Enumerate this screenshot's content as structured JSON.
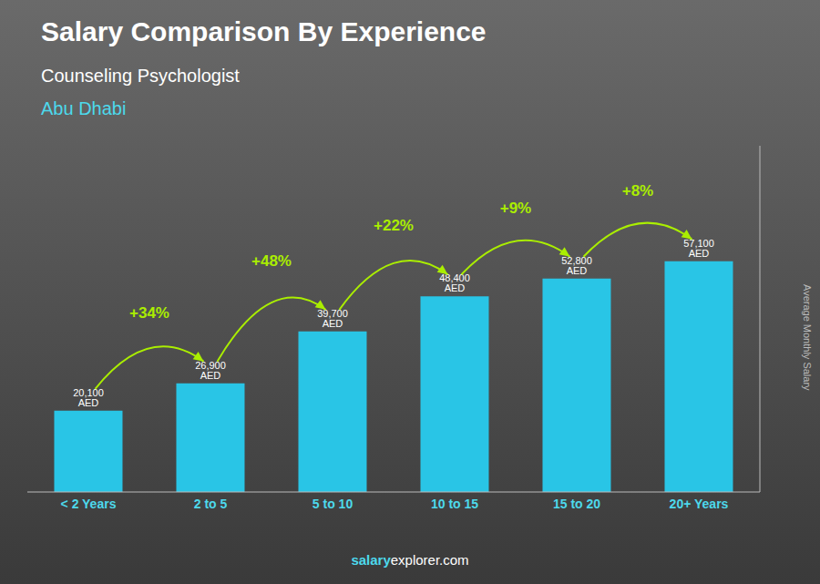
{
  "chart_data": {
    "type": "bar",
    "title": "Salary Comparison By Experience",
    "subtitle": [
      "Counseling Psychologist",
      "Abu Dhabi"
    ],
    "ylabel": "Average Monthly Salary",
    "categories": [
      "< 2 Years",
      "2 to 5",
      "5 to 10",
      "10 to 15",
      "15 to 20",
      "20+ Years"
    ],
    "values": [
      20100,
      26900,
      39700,
      48400,
      52800,
      57100
    ],
    "value_labels": [
      "20,100 AED",
      "26,900 AED",
      "39,700 AED",
      "48,400 AED",
      "52,800 AED",
      "57,100 AED"
    ],
    "data_labels": true,
    "annotations": [
      {
        "text": "+34%",
        "from": "< 2 Years",
        "to": "2 to 5"
      },
      {
        "text": "+48%",
        "from": "2 to 5",
        "to": "5 to 10"
      },
      {
        "text": "+22%",
        "from": "5 to 10",
        "to": "10 to 15"
      },
      {
        "text": "+9%",
        "from": "10 to 15",
        "to": "15 to 20"
      },
      {
        "text": "+8%",
        "from": "15 to 20",
        "to": "20+ Years"
      }
    ],
    "footer": [
      "salary",
      "explorer.com"
    ],
    "color": "#29c5e6",
    "ylim": [
      0,
      85650
    ],
    "tick_labels": "x",
    "grid": false
  }
}
